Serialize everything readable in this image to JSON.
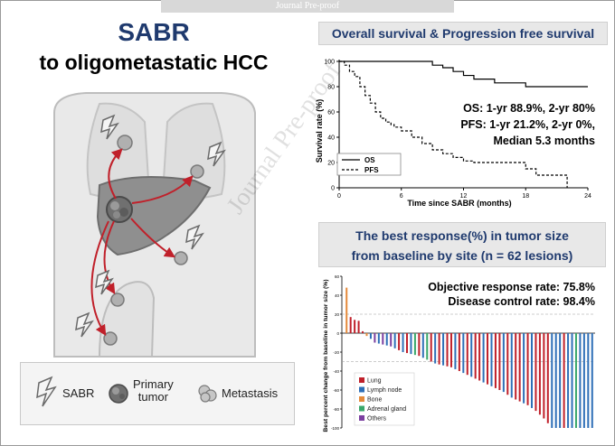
{
  "banner": "Journal Pre-proof",
  "watermark": "Journal Pre-proof",
  "title": {
    "line1": "SABR",
    "line2": "to oligometastatic HCC"
  },
  "legend": {
    "sabr": "SABR",
    "primary_line1": "Primary",
    "primary_line2": "tumor",
    "metastasis": "Metastasis"
  },
  "survival": {
    "header": "Overall survival & Progression free survival",
    "ylabel": "Survival rate (%)",
    "xlabel": "Time since SABR (months)",
    "yticks": [
      "0",
      "20",
      "40",
      "60",
      "80",
      "100"
    ],
    "xticks": [
      "0",
      "6",
      "12",
      "18",
      "24"
    ],
    "os_stat": "OS: 1-yr 88.9%, 2-yr 80%",
    "pfs_stat": "PFS: 1-yr 21.2%, 2-yr 0%,",
    "median": "Median 5.3 months",
    "legend_os": "OS",
    "legend_pfs": "PFS"
  },
  "waterfall": {
    "header_line1": "The best response(%) in tumor size",
    "header_line2": "from baseline by site (n = 62 lesions)",
    "ylabel": "Best percent change from baseline in tumor size (%)",
    "yticks": [
      "60",
      "40",
      "20",
      "0",
      "-20",
      "-40",
      "-60",
      "-80",
      "-100"
    ],
    "orr": "Objective response rate: 75.8%",
    "dcr": "Disease control rate: 98.4%",
    "legend": [
      {
        "label": "Lung",
        "color": "#c0202a"
      },
      {
        "label": "Lymph node",
        "color": "#2e6fb7"
      },
      {
        "label": "Bone",
        "color": "#e58a3a"
      },
      {
        "label": "Adrenal gland",
        "color": "#3aa86b"
      },
      {
        "label": "Others",
        "color": "#7b3fa0"
      }
    ]
  },
  "chart_data": [
    {
      "type": "line",
      "xlabel": "Time since SABR (months)",
      "ylabel": "Survival rate (%)",
      "xlim": [
        0,
        24
      ],
      "ylim": [
        0,
        100
      ],
      "series": [
        {
          "name": "OS",
          "style": "solid",
          "x": [
            0,
            8,
            9,
            10,
            11,
            12,
            13,
            15,
            17,
            18,
            21,
            24
          ],
          "y": [
            100,
            100,
            97,
            95,
            92,
            88.9,
            86,
            83,
            83,
            80,
            80,
            80
          ]
        },
        {
          "name": "PFS",
          "style": "dashed",
          "x": [
            0,
            0.5,
            1,
            1.5,
            2,
            2.5,
            3,
            3.5,
            4,
            4.5,
            5,
            5.3,
            6,
            7,
            8,
            9,
            10,
            11,
            12,
            13,
            14,
            15,
            16,
            17,
            18,
            19,
            20,
            21,
            22
          ],
          "y": [
            100,
            97,
            92,
            88,
            80,
            73,
            67,
            60,
            55,
            52,
            50,
            48,
            45,
            40,
            35,
            30,
            27,
            24,
            21.2,
            20,
            20,
            20,
            20,
            20,
            15,
            10,
            10,
            10,
            0
          ]
        }
      ]
    },
    {
      "type": "bar",
      "title": "The best response(%) in tumor size from baseline by site (n = 62 lesions)",
      "ylabel": "Best percent change from baseline in tumor size (%)",
      "ylim": [
        -100,
        60
      ],
      "sites": [
        "Lung",
        "Lymph node",
        "Bone",
        "Adrenal gland",
        "Others"
      ],
      "colors": {
        "Lung": "#c0202a",
        "Lymph node": "#2e6fb7",
        "Bone": "#e58a3a",
        "Adrenal gland": "#3aa86b",
        "Others": "#7b3fa0"
      },
      "values": [
        48,
        17,
        14,
        13,
        2,
        -3,
        -6,
        -10,
        -11,
        -12,
        -13,
        -14,
        -16,
        -18,
        -20,
        -21,
        -22,
        -23,
        -24,
        -26,
        -28,
        -30,
        -32,
        -33,
        -34,
        -35,
        -36,
        -38,
        -40,
        -42,
        -44,
        -46,
        -48,
        -50,
        -52,
        -54,
        -56,
        -58,
        -60,
        -62,
        -65,
        -68,
        -70,
        -72,
        -74,
        -76,
        -79,
        -82,
        -86,
        -90,
        -95,
        -100,
        -100,
        -100,
        -100,
        -100,
        -100,
        -100,
        -100,
        -100,
        -100,
        -100
      ],
      "site_of_bar": [
        "Bone",
        "Lung",
        "Lung",
        "Lung",
        "Lung",
        "Bone",
        "Lymph node",
        "Others",
        "Lymph node",
        "Others",
        "Lymph node",
        "Others",
        "Lymph node",
        "Lung",
        "Lymph node",
        "Lung",
        "Lymph node",
        "Adrenal gland",
        "Lung",
        "Lymph node",
        "Adrenal gland",
        "Lung",
        "Lymph node",
        "Lung",
        "Lymph node",
        "Lung",
        "Lung",
        "Lymph node",
        "Lung",
        "Lymph node",
        "Lung",
        "Lymph node",
        "Lung",
        "Lung",
        "Lymph node",
        "Lung",
        "Lymph node",
        "Lung",
        "Lung",
        "Lymph node",
        "Lung",
        "Lymph node",
        "Lung",
        "Lung",
        "Lymph node",
        "Lung",
        "Lymph node",
        "Lung",
        "Lung",
        "Lung",
        "Lung",
        "Lymph node",
        "Lymph node",
        "Lymph node",
        "Lung",
        "Lymph node",
        "Lymph node",
        "Adrenal gland",
        "Lymph node",
        "Lymph node",
        "Lymph node",
        "Lymph node"
      ]
    }
  ]
}
